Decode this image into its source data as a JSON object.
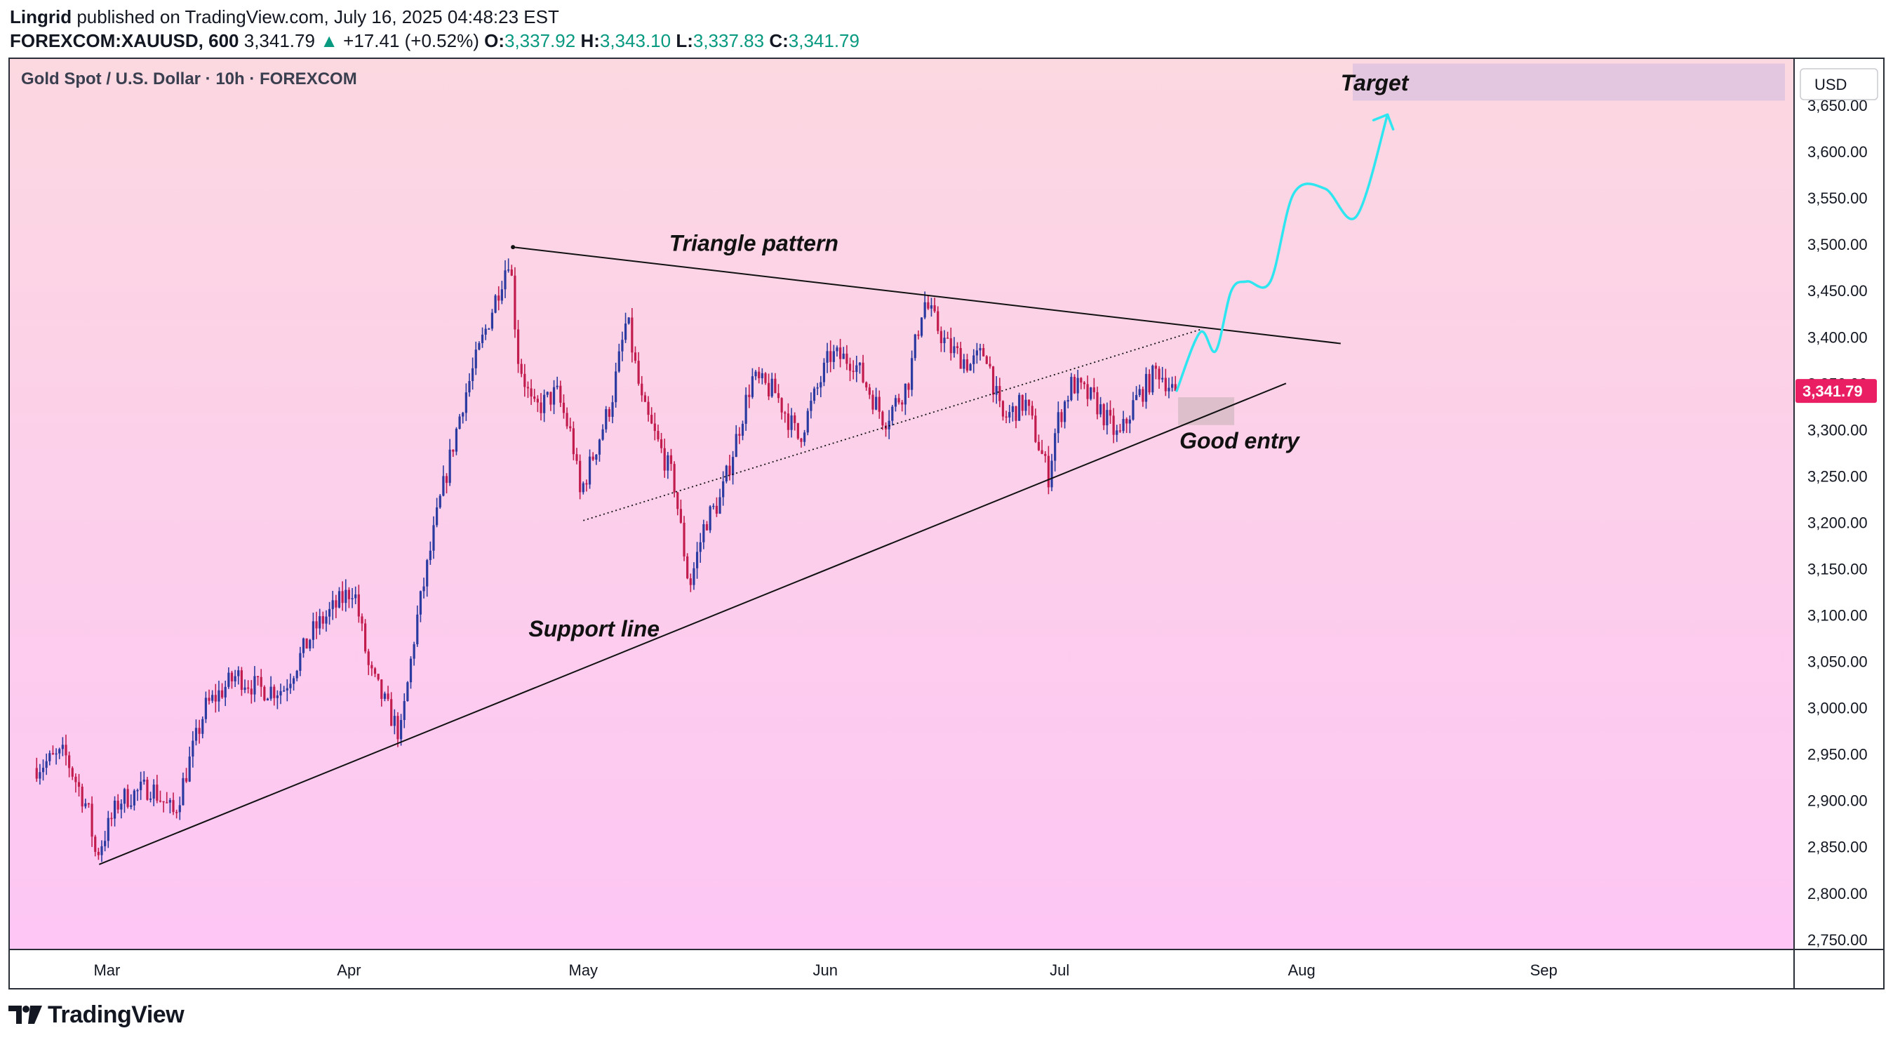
{
  "header": {
    "author": "Lingrid",
    "published_text": "published on TradingView.com, July 16, 2025 04:48:23 EST",
    "symbol_interval": "FOREXCOM:XAUUSD, 600",
    "last_price": "3,341.79",
    "change": "+17.41 (+0.52%)",
    "o_label": "O:",
    "o_value": "3,337.92",
    "h_label": "H:",
    "h_value": "3,343.10",
    "l_label": "L:",
    "l_value": "3,337.83",
    "c_label": "C:",
    "c_value": "3,341.79"
  },
  "chart_title": "Gold Spot / U.S. Dollar · 10h · FOREXCOM",
  "currency": "USD",
  "price_label": "3,341.79",
  "footer_brand": "TradingView",
  "colors": {
    "bg_top": "#fcd8e1",
    "bg_bottom": "#fdc6f4",
    "up_candle": "#2a3aa0",
    "down_candle": "#c21c4e",
    "projection": "#2ee6f0",
    "price_tag": "#e91e63",
    "target_zone": "#e3c6df",
    "entry_zone": "#d9bcc8"
  },
  "chart_data": {
    "type": "candlestick",
    "symbol": "FOREXCOM:XAUUSD",
    "ylim": [
      2740,
      3700
    ],
    "y_ticks": [
      "3,650.00",
      "3,600.00",
      "3,550.00",
      "3,500.00",
      "3,450.00",
      "3,400.00",
      "3,350.00",
      "3,300.00",
      "3,250.00",
      "3,200.00",
      "3,150.00",
      "3,100.00",
      "3,050.00",
      "3,000.00",
      "2,950.00",
      "2,900.00",
      "2,850.00",
      "2,800.00",
      "2,750.00"
    ],
    "x_ticks": [
      "Mar",
      "Apr",
      "May",
      "Jun",
      "Jul",
      "Aug",
      "Sep"
    ],
    "price_path": [
      [
        "2025-02-20",
        2935
      ],
      [
        "2025-02-24",
        2950
      ],
      [
        "2025-02-27",
        2890
      ],
      [
        "2025-02-28",
        2840
      ],
      [
        "2025-03-03",
        2900
      ],
      [
        "2025-03-07",
        2915
      ],
      [
        "2025-03-10",
        2885
      ],
      [
        "2025-03-14",
        3000
      ],
      [
        "2025-03-18",
        3035
      ],
      [
        "2025-03-21",
        3020
      ],
      [
        "2025-03-24",
        3020
      ],
      [
        "2025-03-28",
        3085
      ],
      [
        "2025-04-02",
        3130
      ],
      [
        "2025-04-04",
        3040
      ],
      [
        "2025-04-08",
        2970
      ],
      [
        "2025-04-10",
        3090
      ],
      [
        "2025-04-13",
        3220
      ],
      [
        "2025-04-16",
        3330
      ],
      [
        "2025-04-22",
        3490
      ],
      [
        "2025-04-23",
        3380
      ],
      [
        "2025-04-25",
        3320
      ],
      [
        "2025-04-28",
        3340
      ],
      [
        "2025-04-30",
        3290
      ],
      [
        "2025-05-01",
        3230
      ],
      [
        "2025-05-05",
        3330
      ],
      [
        "2025-05-07",
        3420
      ],
      [
        "2025-05-09",
        3325
      ],
      [
        "2025-05-13",
        3245
      ],
      [
        "2025-05-15",
        3130
      ],
      [
        "2025-05-17",
        3200
      ],
      [
        "2025-05-19",
        3225
      ],
      [
        "2025-05-23",
        3355
      ],
      [
        "2025-05-26",
        3340
      ],
      [
        "2025-05-29",
        3290
      ],
      [
        "2025-06-02",
        3380
      ],
      [
        "2025-06-05",
        3375
      ],
      [
        "2025-06-09",
        3310
      ],
      [
        "2025-06-12",
        3350
      ],
      [
        "2025-06-14",
        3440
      ],
      [
        "2025-06-17",
        3390
      ],
      [
        "2025-06-20",
        3370
      ],
      [
        "2025-06-22",
        3385
      ],
      [
        "2025-06-24",
        3310
      ],
      [
        "2025-06-27",
        3330
      ],
      [
        "2025-06-30",
        3250
      ],
      [
        "2025-07-01",
        3305
      ],
      [
        "2025-07-03",
        3350
      ],
      [
        "2025-07-06",
        3330
      ],
      [
        "2025-07-09",
        3290
      ],
      [
        "2025-07-11",
        3330
      ],
      [
        "2025-07-14",
        3365
      ],
      [
        "2025-07-16",
        3341.79
      ]
    ],
    "projection_path": [
      [
        "2025-07-16",
        3342
      ],
      [
        "2025-07-19",
        3405
      ],
      [
        "2025-07-21",
        3385
      ],
      [
        "2025-07-23",
        3450
      ],
      [
        "2025-07-25",
        3460
      ],
      [
        "2025-07-28",
        3460
      ],
      [
        "2025-07-31",
        3555
      ],
      [
        "2025-08-04",
        3560
      ],
      [
        "2025-08-08",
        3530
      ],
      [
        "2025-08-12",
        3640
      ]
    ],
    "trendlines": {
      "resistance": [
        [
          "2025-04-22",
          3497
        ],
        [
          "2025-08-06",
          3393
        ]
      ],
      "support": [
        [
          "2025-02-28",
          2831
        ],
        [
          "2025-07-30",
          3350
        ]
      ],
      "dotted_inner": [
        [
          "2025-05-01",
          3202
        ],
        [
          "2025-07-19",
          3408
        ]
      ]
    },
    "zones": {
      "target": {
        "label": "Target",
        "y_range": [
          3655,
          3695
        ]
      },
      "entry": {
        "label": "Good entry",
        "y_range": [
          3305,
          3335
        ]
      }
    },
    "annotations": [
      "Triangle pattern",
      "Support line",
      "Good entry",
      "Target"
    ]
  }
}
